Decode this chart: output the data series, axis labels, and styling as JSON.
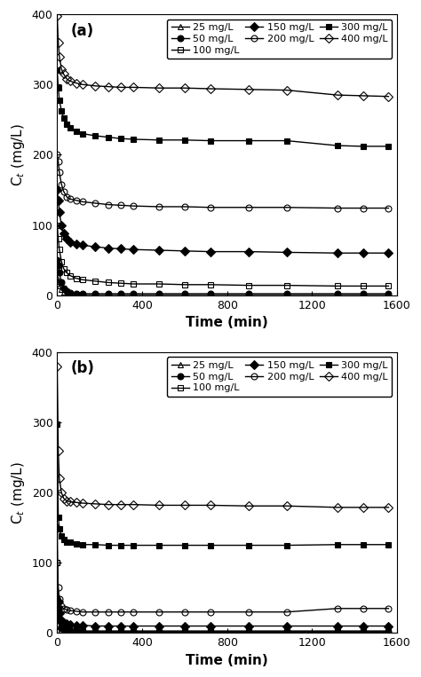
{
  "panel_a": {
    "label": "(a)",
    "series": [
      {
        "conc": "25 mg/L",
        "marker": "^",
        "fillstyle": "none",
        "x": [
          0,
          5,
          10,
          20,
          30,
          45,
          60,
          90,
          120,
          180,
          240,
          300,
          360,
          480,
          600,
          720,
          900,
          1080,
          1320,
          1440,
          1560
        ],
        "y": [
          25,
          20,
          14,
          8,
          5,
          3,
          2,
          1.5,
          1,
          1,
          1,
          1,
          1,
          1,
          1,
          1,
          1,
          1,
          1,
          1,
          1
        ]
      },
      {
        "conc": "50 mg/L",
        "marker": "o",
        "fillstyle": "full",
        "x": [
          0,
          5,
          10,
          20,
          30,
          45,
          60,
          90,
          120,
          180,
          240,
          300,
          360,
          480,
          600,
          720,
          900,
          1080,
          1320,
          1440,
          1560
        ],
        "y": [
          50,
          42,
          32,
          18,
          10,
          6,
          4,
          2.5,
          2,
          2,
          2,
          2,
          2,
          2,
          2,
          2,
          2,
          2,
          2,
          2,
          2
        ]
      },
      {
        "conc": "100 mg/L",
        "marker": "s",
        "fillstyle": "none",
        "x": [
          0,
          5,
          10,
          20,
          30,
          45,
          60,
          90,
          120,
          180,
          240,
          300,
          360,
          480,
          600,
          720,
          900,
          1080,
          1320,
          1440,
          1560
        ],
        "y": [
          100,
          80,
          65,
          48,
          38,
          32,
          28,
          24,
          22,
          20,
          18,
          17,
          16,
          16,
          15,
          15,
          14,
          14,
          13,
          13,
          13
        ]
      },
      {
        "conc": "150 mg/L",
        "marker": "D",
        "fillstyle": "full",
        "x": [
          0,
          5,
          10,
          20,
          30,
          45,
          60,
          90,
          120,
          180,
          240,
          300,
          360,
          480,
          600,
          720,
          900,
          1080,
          1320,
          1440,
          1560
        ],
        "y": [
          150,
          135,
          118,
          100,
          88,
          80,
          76,
          73,
          71,
          69,
          67,
          66,
          65,
          64,
          63,
          62,
          62,
          61,
          60,
          60,
          60
        ]
      },
      {
        "conc": "200 mg/L",
        "marker": "o",
        "fillstyle": "none",
        "x": [
          0,
          5,
          10,
          20,
          30,
          45,
          60,
          90,
          120,
          180,
          240,
          300,
          360,
          480,
          600,
          720,
          900,
          1080,
          1320,
          1440,
          1560
        ],
        "y": [
          200,
          190,
          175,
          158,
          148,
          140,
          137,
          135,
          133,
          131,
          129,
          128,
          127,
          126,
          126,
          125,
          125,
          125,
          124,
          124,
          124
        ]
      },
      {
        "conc": "300 mg/L",
        "marker": "s",
        "fillstyle": "full",
        "x": [
          0,
          5,
          10,
          20,
          30,
          45,
          60,
          90,
          120,
          180,
          240,
          300,
          360,
          480,
          600,
          720,
          900,
          1080,
          1320,
          1440,
          1560
        ],
        "y": [
          320,
          295,
          278,
          263,
          252,
          243,
          238,
          233,
          230,
          227,
          225,
          223,
          222,
          221,
          221,
          220,
          220,
          220,
          213,
          212,
          212
        ]
      },
      {
        "conc": "400 mg/L",
        "marker": "D",
        "fillstyle": "none",
        "x": [
          0,
          5,
          10,
          20,
          30,
          45,
          60,
          90,
          120,
          180,
          240,
          300,
          360,
          480,
          600,
          720,
          900,
          1080,
          1320,
          1440,
          1560
        ],
        "y": [
          398,
          360,
          340,
          322,
          315,
          308,
          305,
          302,
          300,
          298,
          297,
          296,
          296,
          295,
          295,
          294,
          293,
          292,
          285,
          284,
          283
        ]
      }
    ]
  },
  "panel_b": {
    "label": "(b)",
    "series": [
      {
        "conc": "25 mg/L",
        "marker": "^",
        "fillstyle": "none",
        "x": [
          0,
          5,
          10,
          20,
          30,
          45,
          60,
          90,
          120,
          180,
          240,
          300,
          360,
          480,
          600,
          720,
          900,
          1080,
          1320,
          1440,
          1560
        ],
        "y": [
          25,
          18,
          10,
          5,
          3,
          2,
          1.5,
          1,
          1,
          1,
          1,
          1,
          1,
          1,
          1,
          1,
          1,
          1,
          1,
          1,
          1
        ]
      },
      {
        "conc": "50 mg/L",
        "marker": "o",
        "fillstyle": "full",
        "x": [
          0,
          5,
          10,
          20,
          30,
          45,
          60,
          90,
          120,
          180,
          240,
          300,
          360,
          480,
          600,
          720,
          900,
          1080,
          1320,
          1440,
          1560
        ],
        "y": [
          50,
          35,
          18,
          8,
          5,
          3,
          2,
          2,
          2,
          2,
          2,
          2,
          2,
          2,
          2,
          2,
          2,
          2,
          2,
          2,
          2
        ]
      },
      {
        "conc": "100 mg/L",
        "marker": "s",
        "fillstyle": "none",
        "x": [
          0,
          5,
          10,
          20,
          30,
          45,
          60,
          90,
          120,
          180,
          240,
          300,
          360,
          480,
          600,
          720,
          900,
          1080,
          1320,
          1440,
          1560
        ],
        "y": [
          100,
          22,
          12,
          7,
          5,
          4,
          3,
          3,
          3,
          3,
          3,
          3,
          3,
          3,
          3,
          3,
          3,
          3,
          3,
          3,
          3
        ]
      },
      {
        "conc": "150 mg/L",
        "marker": "D",
        "fillstyle": "full",
        "x": [
          0,
          5,
          10,
          20,
          30,
          45,
          60,
          90,
          120,
          180,
          240,
          300,
          360,
          480,
          600,
          720,
          900,
          1080,
          1320,
          1440,
          1560
        ],
        "y": [
          150,
          45,
          28,
          18,
          14,
          13,
          12,
          11,
          11,
          10,
          10,
          10,
          10,
          10,
          10,
          10,
          10,
          10,
          10,
          10,
          10
        ]
      },
      {
        "conc": "200 mg/L",
        "marker": "o",
        "fillstyle": "none",
        "x": [
          0,
          5,
          10,
          20,
          30,
          45,
          60,
          90,
          120,
          180,
          240,
          300,
          360,
          480,
          600,
          720,
          900,
          1080,
          1320,
          1440,
          1560
        ],
        "y": [
          100,
          65,
          48,
          38,
          35,
          33,
          32,
          31,
          30,
          30,
          30,
          30,
          30,
          30,
          30,
          30,
          30,
          30,
          35,
          35,
          35
        ]
      },
      {
        "conc": "300 mg/L",
        "marker": "s",
        "fillstyle": "full",
        "x": [
          0,
          5,
          10,
          20,
          30,
          45,
          60,
          90,
          120,
          180,
          240,
          300,
          360,
          480,
          600,
          720,
          900,
          1080,
          1320,
          1440,
          1560
        ],
        "y": [
          298,
          165,
          148,
          138,
          133,
          130,
          129,
          127,
          126,
          126,
          125,
          125,
          125,
          125,
          125,
          125,
          125,
          125,
          126,
          126,
          126
        ]
      },
      {
        "conc": "400 mg/L",
        "marker": "D",
        "fillstyle": "none",
        "x": [
          0,
          5,
          10,
          20,
          30,
          45,
          60,
          90,
          120,
          180,
          240,
          300,
          360,
          480,
          600,
          720,
          900,
          1080,
          1320,
          1440,
          1560
        ],
        "y": [
          380,
          260,
          220,
          200,
          192,
          188,
          187,
          186,
          185,
          184,
          183,
          183,
          183,
          182,
          182,
          182,
          181,
          181,
          179,
          179,
          179
        ]
      }
    ]
  },
  "xlabel": "Time (min)",
  "ylabel": "C$_t$ (mg/L)",
  "xlim": [
    0,
    1600
  ],
  "ylim": [
    0,
    400
  ],
  "xticks": [
    0,
    400,
    800,
    1200,
    1600
  ],
  "yticks": [
    0,
    100,
    200,
    300,
    400
  ],
  "legend_order_col_major": [
    "25 mg/L",
    "150 mg/L",
    "400 mg/L",
    "50 mg/L",
    "200 mg/L",
    "100 mg/L",
    "300 mg/L"
  ],
  "markersize": 5,
  "linewidth": 1.0,
  "fontsize_label": 11,
  "fontsize_tick": 9,
  "fontsize_legend": 8,
  "fontsize_panel": 12
}
